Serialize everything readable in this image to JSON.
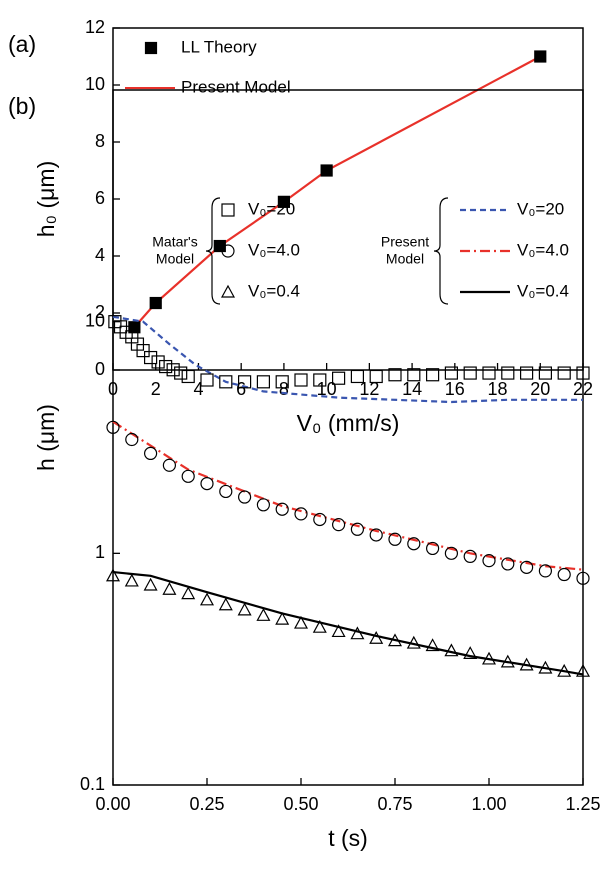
{
  "chart_data": [
    {
      "type": "line",
      "label": "(a)",
      "xlabel": "V₀ (mm/s)",
      "ylabel": "h₀ (μm)",
      "xlim": [
        0,
        22
      ],
      "xticks": [
        0,
        2,
        4,
        6,
        8,
        10,
        12,
        14,
        16,
        18,
        20,
        22
      ],
      "ylim": [
        0,
        12
      ],
      "yticks": [
        0,
        2,
        4,
        6,
        8,
        10,
        12
      ],
      "log_y": false,
      "legend": "upper left",
      "series": [
        {
          "name": "LL Theory",
          "color": "#000000",
          "style": "markers",
          "marker": "square",
          "marker_fill": true,
          "x": [
            1,
            2,
            5,
            8,
            10,
            20
          ],
          "values": [
            1.5,
            2.35,
            4.35,
            5.9,
            7.0,
            11.0
          ]
        },
        {
          "name": "Present Model",
          "color": "#e8312a",
          "style": "line",
          "dash": "solid",
          "x": [
            1,
            2,
            5,
            8,
            10,
            20
          ],
          "values": [
            1.5,
            2.35,
            4.35,
            5.9,
            7.0,
            11.0
          ]
        }
      ]
    },
    {
      "type": "line",
      "label": "(b)",
      "xlabel": "t (s)",
      "ylabel": "h (μm)",
      "xlim": [
        0,
        1.25
      ],
      "xticks": [
        {
          "value": 0,
          "label": "0.00"
        },
        {
          "value": 0.25,
          "label": "0.25"
        },
        {
          "value": 0.5,
          "label": "0.50"
        },
        {
          "value": 0.75,
          "label": "0.75"
        },
        {
          "value": 1.0,
          "label": "1.00"
        },
        {
          "value": 1.25,
          "label": "1.25"
        }
      ],
      "ylim": [
        0.1,
        100
      ],
      "yticks": [
        0.1,
        1,
        10
      ],
      "log_y": true,
      "legend_groups": [
        [
          "Matar's",
          "Model"
        ],
        [
          "Present",
          "Model"
        ]
      ],
      "series": [
        {
          "name": "V₀=20",
          "color": "#000000",
          "style": "markers",
          "marker": "square",
          "marker_fill": false,
          "x": [
            0.005,
            0.02,
            0.035,
            0.05,
            0.065,
            0.08,
            0.1,
            0.12,
            0.14,
            0.16,
            0.18,
            0.2,
            0.25,
            0.3,
            0.35,
            0.4,
            0.45,
            0.5,
            0.55,
            0.6,
            0.65,
            0.7,
            0.75,
            0.8,
            0.85,
            0.9,
            0.95,
            1.0,
            1.05,
            1.1,
            1.15,
            1.2,
            1.25
          ],
          "values": [
            10,
            9.5,
            9.0,
            8.6,
            8.0,
            7.5,
            7.0,
            6.7,
            6.4,
            6.2,
            6.0,
            5.8,
            5.6,
            5.5,
            5.5,
            5.5,
            5.5,
            5.6,
            5.6,
            5.7,
            5.8,
            5.8,
            5.9,
            5.9,
            5.9,
            6.0,
            6.0,
            6.0,
            6.0,
            6.0,
            6.0,
            6.0,
            6.0
          ]
        },
        {
          "name": "V₀=4.0",
          "color": "#000000",
          "style": "markers",
          "marker": "circle",
          "marker_fill": false,
          "x": [
            0,
            0.05,
            0.1,
            0.15,
            0.2,
            0.25,
            0.3,
            0.35,
            0.4,
            0.45,
            0.5,
            0.55,
            0.6,
            0.65,
            0.7,
            0.75,
            0.8,
            0.85,
            0.9,
            0.95,
            1.0,
            1.05,
            1.1,
            1.15,
            1.2,
            1.25
          ],
          "values": [
            3.5,
            3.1,
            2.7,
            2.4,
            2.15,
            2.0,
            1.85,
            1.75,
            1.62,
            1.55,
            1.48,
            1.4,
            1.33,
            1.27,
            1.2,
            1.15,
            1.1,
            1.05,
            1.0,
            0.97,
            0.93,
            0.9,
            0.87,
            0.84,
            0.81,
            0.78
          ]
        },
        {
          "name": "V₀=0.4",
          "color": "#000000",
          "style": "markers",
          "marker": "triangle",
          "marker_fill": false,
          "x": [
            0,
            0.05,
            0.1,
            0.15,
            0.2,
            0.25,
            0.3,
            0.35,
            0.4,
            0.45,
            0.5,
            0.55,
            0.6,
            0.65,
            0.7,
            0.75,
            0.8,
            0.85,
            0.9,
            0.95,
            1.0,
            1.05,
            1.1,
            1.15,
            1.2,
            1.25
          ],
          "values": [
            0.8,
            0.76,
            0.73,
            0.7,
            0.67,
            0.63,
            0.6,
            0.57,
            0.54,
            0.52,
            0.5,
            0.48,
            0.46,
            0.45,
            0.43,
            0.42,
            0.41,
            0.4,
            0.38,
            0.37,
            0.35,
            0.34,
            0.33,
            0.32,
            0.31,
            0.31
          ]
        },
        {
          "name": "V₀=20",
          "color": "#3a56b0",
          "style": "line",
          "dash": "dashed",
          "x": [
            0,
            0.08,
            0.15,
            0.22,
            0.3,
            0.4,
            0.6,
            0.9,
            1.05,
            1.25
          ],
          "values": [
            10.5,
            10,
            8,
            6.5,
            5.5,
            5.0,
            4.7,
            4.5,
            4.6,
            4.6
          ]
        },
        {
          "name": "V₀=4.0",
          "color": "#e8312a",
          "style": "line",
          "dash": "dashdot",
          "x": [
            0,
            0.2,
            0.45,
            0.7,
            0.95,
            1.15,
            1.25
          ],
          "values": [
            3.7,
            2.3,
            1.6,
            1.25,
            1.0,
            0.88,
            0.85
          ]
        },
        {
          "name": "V₀=0.4",
          "color": "#000000",
          "style": "line",
          "dash": "solid",
          "x": [
            0,
            0.1,
            0.25,
            0.45,
            0.7,
            0.95,
            1.2,
            1.25
          ],
          "values": [
            0.83,
            0.8,
            0.68,
            0.55,
            0.44,
            0.36,
            0.31,
            0.3
          ]
        }
      ]
    }
  ]
}
